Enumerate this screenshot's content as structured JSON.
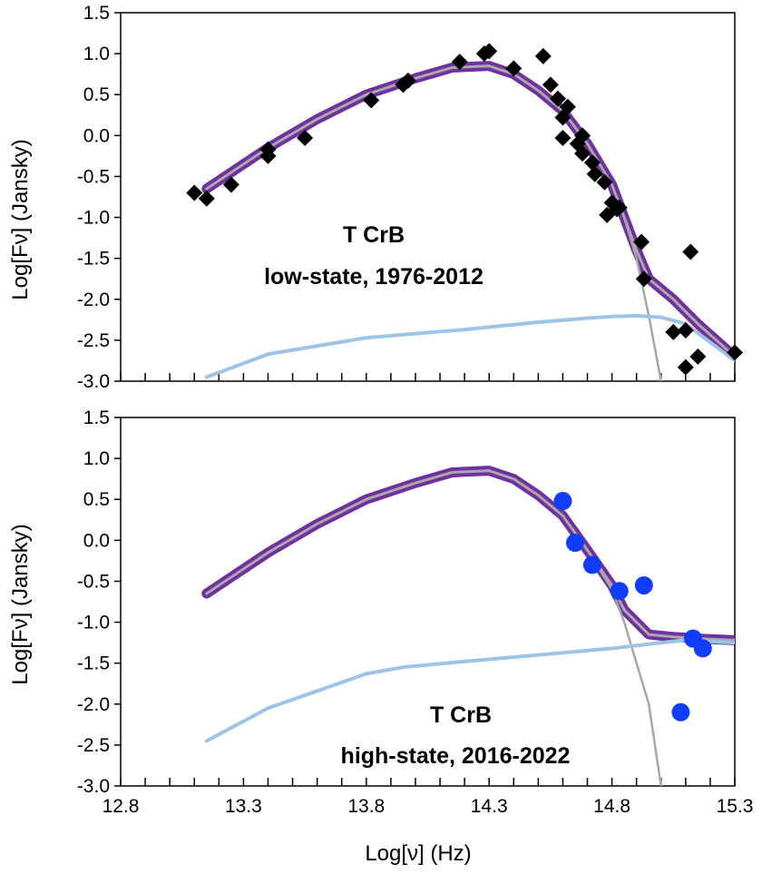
{
  "chart_data": [
    {
      "type": "scatter",
      "panel": "top",
      "ylabel": "Log[Fν] (Jansky)",
      "xlim": [
        12.8,
        15.3
      ],
      "ylim": [
        -3.0,
        1.5
      ],
      "x_tick_step": 0.1,
      "y_ticks": [
        -3.0,
        -2.5,
        -2.0,
        -1.5,
        -1.0,
        -0.5,
        0.0,
        0.5,
        1.0,
        1.5
      ],
      "y_tick_labels": [
        "-3.0",
        "-2.5",
        "-2.0",
        "-1.5",
        "-1.0",
        "-0.5",
        "0.0",
        "0.5",
        "1.0",
        "1.5"
      ],
      "annotation": [
        "T CrB",
        "low-state, 1976-2012"
      ],
      "series": [
        {
          "name": "total model",
          "kind": "line",
          "color_outer": "#7030a0",
          "color_inner": "#a9a9a9",
          "x": [
            13.15,
            13.4,
            13.6,
            13.8,
            14.0,
            14.15,
            14.3,
            14.4,
            14.5,
            14.6,
            14.7,
            14.8,
            14.85,
            14.9,
            14.95,
            15.05,
            15.15,
            15.3
          ],
          "y": [
            -0.65,
            -0.15,
            0.2,
            0.5,
            0.7,
            0.83,
            0.85,
            0.75,
            0.55,
            0.3,
            -0.1,
            -0.6,
            -1.0,
            -1.4,
            -1.75,
            -2.0,
            -2.3,
            -2.7
          ]
        },
        {
          "name": "cool component",
          "kind": "line",
          "color": "#a6a6a6",
          "x": [
            14.5,
            14.6,
            14.7,
            14.8,
            14.85,
            14.9,
            14.95,
            15.0
          ],
          "y": [
            0.55,
            0.3,
            -0.1,
            -0.6,
            -1.0,
            -1.5,
            -2.2,
            -3.0
          ]
        },
        {
          "name": "hot component",
          "kind": "line",
          "color": "#9dc3e6",
          "x": [
            13.15,
            13.4,
            13.8,
            14.0,
            14.2,
            14.5,
            14.7,
            14.8,
            14.9,
            15.0,
            15.1,
            15.3
          ],
          "y": [
            -2.95,
            -2.67,
            -2.47,
            -2.42,
            -2.37,
            -2.28,
            -2.23,
            -2.21,
            -2.2,
            -2.22,
            -2.3,
            -2.75
          ]
        },
        {
          "name": "observations",
          "kind": "markers",
          "marker": "diamond",
          "color": "#000000",
          "x": [
            13.1,
            13.15,
            13.25,
            13.4,
            13.4,
            13.55,
            13.82,
            13.95,
            13.97,
            14.18,
            14.28,
            14.3,
            14.4,
            14.52,
            14.55,
            14.58,
            14.6,
            14.62,
            14.6,
            14.66,
            14.68,
            14.68,
            14.72,
            14.73,
            14.77,
            14.78,
            14.8,
            14.82,
            14.83,
            14.92,
            14.93,
            15.05,
            15.1,
            15.1,
            15.12,
            15.15,
            15.3
          ],
          "y": [
            -0.7,
            -0.77,
            -0.6,
            -0.17,
            -0.25,
            -0.03,
            0.43,
            0.62,
            0.67,
            0.9,
            1.0,
            1.03,
            0.82,
            0.97,
            0.62,
            0.45,
            0.22,
            0.35,
            -0.03,
            -0.1,
            -0.22,
            0.0,
            -0.33,
            -0.47,
            -0.57,
            -0.97,
            -0.82,
            -0.9,
            -0.88,
            -1.3,
            -1.75,
            -2.4,
            -2.38,
            -2.83,
            -1.42,
            -2.7,
            -2.65
          ]
        }
      ]
    },
    {
      "type": "scatter",
      "panel": "bottom",
      "xlabel": "Log[ν] (Hz)",
      "ylabel": "Log[Fν] (Jansky)",
      "xlim": [
        12.8,
        15.3
      ],
      "ylim": [
        -3.0,
        1.5
      ],
      "x_tick_step": 0.1,
      "x_ticks": [
        12.8,
        13.3,
        13.8,
        14.3,
        14.8,
        15.3
      ],
      "x_tick_labels": [
        "12.8",
        "13.3",
        "13.8",
        "14.3",
        "14.8",
        "15.3"
      ],
      "y_ticks": [
        -3.0,
        -2.5,
        -2.0,
        -1.5,
        -1.0,
        -0.5,
        0.0,
        0.5,
        1.0,
        1.5
      ],
      "y_tick_labels": [
        "-3.0",
        "-2.5",
        "-2.0",
        "-1.5",
        "-1.0",
        "-0.5",
        "0.0",
        "0.5",
        "1.0",
        "1.5"
      ],
      "annotation": [
        "T CrB",
        "high-state, 2016-2022"
      ],
      "series": [
        {
          "name": "total model",
          "kind": "line",
          "color_outer": "#7030a0",
          "color_inner": "#a9a9a9",
          "x": [
            13.15,
            13.4,
            13.6,
            13.8,
            14.0,
            14.15,
            14.3,
            14.4,
            14.5,
            14.6,
            14.7,
            14.8,
            14.85,
            14.95,
            15.05,
            15.15,
            15.3
          ],
          "y": [
            -0.65,
            -0.15,
            0.2,
            0.5,
            0.7,
            0.83,
            0.85,
            0.75,
            0.55,
            0.3,
            -0.12,
            -0.55,
            -0.85,
            -1.15,
            -1.18,
            -1.2,
            -1.22
          ]
        },
        {
          "name": "cool component",
          "kind": "line",
          "color": "#a6a6a6",
          "x": [
            14.5,
            14.6,
            14.7,
            14.8,
            14.85,
            14.9,
            14.95,
            15.0
          ],
          "y": [
            0.55,
            0.3,
            -0.12,
            -0.6,
            -1.0,
            -1.5,
            -2.0,
            -3.0
          ]
        },
        {
          "name": "hot component",
          "kind": "line",
          "color": "#9dc3e6",
          "x": [
            13.15,
            13.4,
            13.8,
            13.95,
            14.2,
            14.5,
            14.8,
            15.0,
            15.1,
            15.3
          ],
          "y": [
            -2.45,
            -2.05,
            -1.63,
            -1.55,
            -1.48,
            -1.4,
            -1.32,
            -1.25,
            -1.22,
            -1.25
          ]
        },
        {
          "name": "observations",
          "kind": "markers",
          "marker": "circle",
          "color": "#0f3dfa",
          "x": [
            14.6,
            14.65,
            14.72,
            14.83,
            14.93,
            15.08,
            15.13,
            15.17
          ],
          "y": [
            0.48,
            -0.03,
            -0.3,
            -0.62,
            -0.55,
            -2.1,
            -1.2,
            -1.32
          ]
        }
      ]
    }
  ]
}
